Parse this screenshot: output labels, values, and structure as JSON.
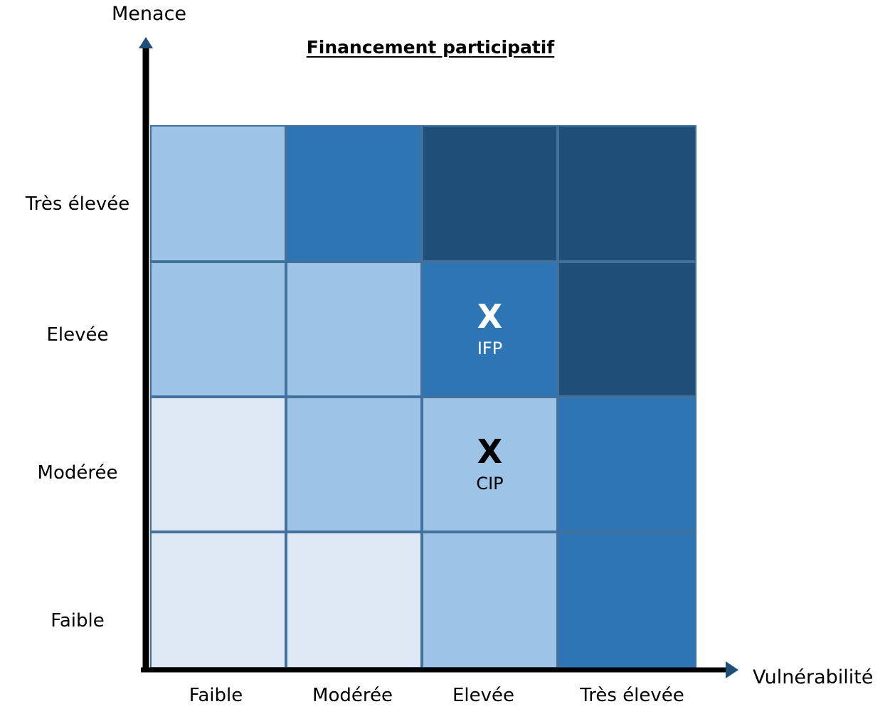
{
  "title": "Financement participatif",
  "y_axis": {
    "label": "Menace",
    "ticks": [
      "Très élevée",
      "Elevée",
      "Modérée",
      "Faible"
    ]
  },
  "x_axis": {
    "label": "Vulnérabilité",
    "ticks": [
      "Faible",
      "Modérée",
      "Elevée",
      "Très élevée"
    ]
  },
  "colors": {
    "level1": "#dee8f5",
    "level2": "#9dc3e6",
    "level3": "#2e75b6",
    "level4": "#1f4e79",
    "border": "#41719c",
    "axis": "#000000",
    "arrow": "#1f4e79"
  },
  "matrix": {
    "rows": [
      {
        "threat": "Très élevée",
        "levels": [
          "level2",
          "level3",
          "level4",
          "level4"
        ]
      },
      {
        "threat": "Elevée",
        "levels": [
          "level2",
          "level2",
          "level3",
          "level4"
        ]
      },
      {
        "threat": "Modérée",
        "levels": [
          "level1",
          "level2",
          "level2",
          "level3"
        ]
      },
      {
        "threat": "Faible",
        "levels": [
          "level1",
          "level1",
          "level2",
          "level3"
        ]
      }
    ]
  },
  "markers": [
    {
      "mark": "X",
      "label": "IFP",
      "row": 1,
      "col": 2,
      "text_color": "#ffffff"
    },
    {
      "mark": "X",
      "label": "CIP",
      "row": 2,
      "col": 2,
      "text_color": "#000000"
    }
  ]
}
